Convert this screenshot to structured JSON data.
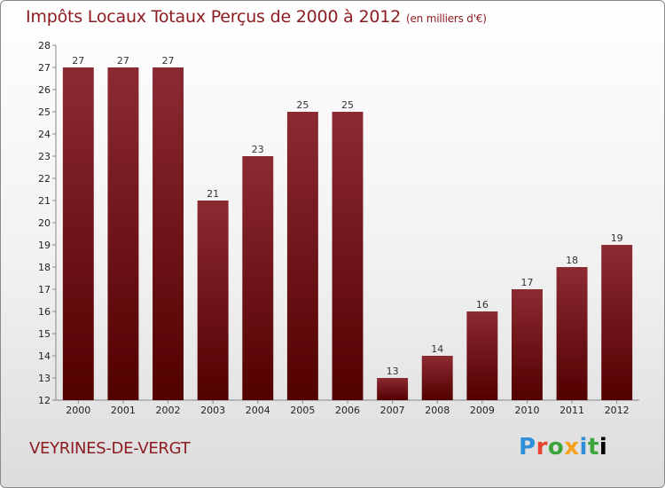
{
  "title": "Impôts Locaux Totaux Perçus de 2000 à 2012",
  "title_unit": "(en milliers d'€)",
  "place": "VEYRINES-DE-VERGT",
  "logo_letters": [
    "P",
    "r",
    "o",
    "x",
    "i",
    "t",
    "i"
  ],
  "colors": {
    "bar_top": "#8c2a32",
    "bar_bottom": "#520000",
    "title": "#8c1c22"
  },
  "chart_data": {
    "type": "bar",
    "title": "Impôts Locaux Totaux Perçus de 2000 à 2012",
    "categories": [
      "2000",
      "2001",
      "2002",
      "2003",
      "2004",
      "2005",
      "2006",
      "2007",
      "2008",
      "2009",
      "2010",
      "2011",
      "2012"
    ],
    "values": [
      27,
      27,
      27,
      21,
      23,
      25,
      25,
      13,
      14,
      16,
      17,
      18,
      19
    ],
    "ylim": [
      12,
      28
    ],
    "yticks": [
      "12",
      "13",
      "14",
      "15",
      "16",
      "17",
      "18",
      "19",
      "20",
      "21",
      "22",
      "23",
      "24",
      "25",
      "26",
      "27",
      "28"
    ],
    "grid": false,
    "xlabel": "",
    "ylabel": ""
  }
}
